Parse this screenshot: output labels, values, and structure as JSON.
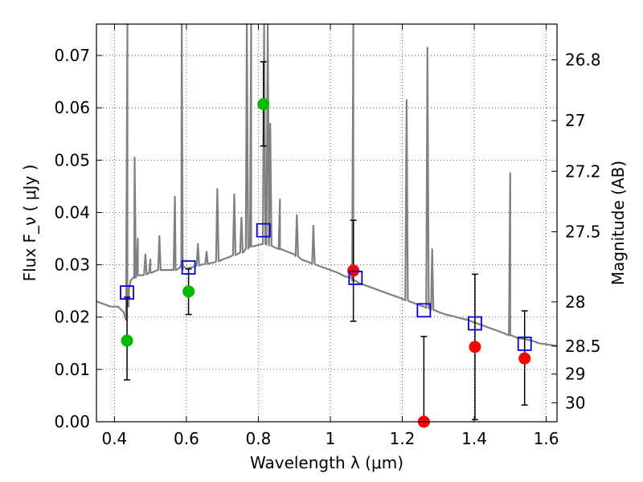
{
  "chart_data": {
    "type": "scatter",
    "title": "",
    "xlabel": "Wavelength  λ (μm)",
    "ylabel": "Flux  F_ν  ( μJy )",
    "y2label": "Magnitude (AB)",
    "xlim": [
      0.35,
      1.63
    ],
    "ylim": [
      0.0,
      0.076
    ],
    "grid": true,
    "x_ticks": [
      "0.4",
      "0.6",
      "0.8",
      "1",
      "1.2",
      "1.4",
      "1.6"
    ],
    "x_tick_values": [
      0.4,
      0.6,
      0.8,
      1.0,
      1.2,
      1.4,
      1.6
    ],
    "y_ticks": [
      "0.00",
      "0.01",
      "0.02",
      "0.03",
      "0.04",
      "0.05",
      "0.06",
      "0.07"
    ],
    "y_tick_values": [
      0.0,
      0.01,
      0.02,
      0.03,
      0.04,
      0.05,
      0.06,
      0.07
    ],
    "mag_ticks": [
      "26.8",
      "27",
      "27.2",
      "27.5",
      "28",
      "28.5",
      "29",
      "30"
    ],
    "colors": {
      "spectrum": "#808080",
      "detections": "#00bb00",
      "upper_limits": "#ff0000",
      "model_photometry": "#0000dd"
    },
    "series": [
      {
        "kind": "spectrum",
        "x": [
          0.35,
          0.37,
          0.39,
          0.41,
          0.425,
          0.432,
          0.436,
          0.44,
          0.445,
          0.455,
          0.465,
          0.48,
          0.5,
          0.52,
          0.545,
          0.57,
          0.583,
          0.586,
          0.59,
          0.6,
          0.62,
          0.64,
          0.66,
          0.68,
          0.7,
          0.72,
          0.74,
          0.76,
          0.765,
          0.78,
          0.8,
          0.82,
          0.84,
          0.86,
          0.88,
          0.9,
          0.92,
          0.94,
          0.96,
          0.98,
          1.0,
          1.02,
          1.04,
          1.06,
          1.064,
          1.08,
          1.1,
          1.12,
          1.14,
          1.16,
          1.18,
          1.2,
          1.22,
          1.24,
          1.26,
          1.28,
          1.3,
          1.32,
          1.34,
          1.36,
          1.38,
          1.4,
          1.42,
          1.44,
          1.46,
          1.48,
          1.5,
          1.52,
          1.54,
          1.56,
          1.58,
          1.6,
          1.63
        ],
        "y": [
          0.023,
          0.0225,
          0.022,
          0.022,
          0.021,
          0.0195,
          0.022,
          0.025,
          0.027,
          0.0275,
          0.028,
          0.028,
          0.0285,
          0.029,
          0.029,
          0.029,
          0.0295,
          0.03,
          0.029,
          0.0293,
          0.0296,
          0.03,
          0.0302,
          0.0305,
          0.031,
          0.0315,
          0.032,
          0.0325,
          0.033,
          0.0335,
          0.0338,
          0.034,
          0.0335,
          0.033,
          0.0325,
          0.032,
          0.031,
          0.0305,
          0.03,
          0.0295,
          0.029,
          0.0285,
          0.0278,
          0.0275,
          0.027,
          0.0265,
          0.026,
          0.0255,
          0.025,
          0.0245,
          0.024,
          0.0235,
          0.023,
          0.0225,
          0.022,
          0.0215,
          0.021,
          0.0205,
          0.0202,
          0.0198,
          0.0195,
          0.019,
          0.0185,
          0.018,
          0.0175,
          0.017,
          0.0165,
          0.016,
          0.0158,
          0.0155,
          0.015,
          0.0148,
          0.0145
        ],
        "lines": [
          {
            "x": 0.436,
            "peak": 0.076
          },
          {
            "x": 0.456,
            "peak": 0.0505
          },
          {
            "x": 0.465,
            "peak": 0.035
          },
          {
            "x": 0.486,
            "peak": 0.032
          },
          {
            "x": 0.5,
            "peak": 0.031
          },
          {
            "x": 0.525,
            "peak": 0.0355
          },
          {
            "x": 0.568,
            "peak": 0.043
          },
          {
            "x": 0.587,
            "peak": 0.076
          },
          {
            "x": 0.632,
            "peak": 0.034
          },
          {
            "x": 0.656,
            "peak": 0.0325
          },
          {
            "x": 0.686,
            "peak": 0.0445
          },
          {
            "x": 0.733,
            "peak": 0.0435
          },
          {
            "x": 0.753,
            "peak": 0.039
          },
          {
            "x": 0.768,
            "peak": 0.076
          },
          {
            "x": 0.78,
            "peak": 0.076
          },
          {
            "x": 0.816,
            "peak": 0.076
          },
          {
            "x": 0.826,
            "peak": 0.076
          },
          {
            "x": 0.833,
            "peak": 0.057
          },
          {
            "x": 0.86,
            "peak": 0.0425
          },
          {
            "x": 0.907,
            "peak": 0.0395
          },
          {
            "x": 0.953,
            "peak": 0.0375
          },
          {
            "x": 1.064,
            "peak": 0.076
          },
          {
            "x": 1.212,
            "peak": 0.0615
          },
          {
            "x": 1.27,
            "peak": 0.0715
          },
          {
            "x": 1.283,
            "peak": 0.033
          },
          {
            "x": 1.5,
            "peak": 0.0475
          }
        ]
      },
      {
        "kind": "detections",
        "points": [
          {
            "x": 0.435,
            "y": 0.0155,
            "yerr_low": 0.008,
            "yerr_high": 0.0238
          },
          {
            "x": 0.606,
            "y": 0.0249,
            "yerr_low": 0.0205,
            "yerr_high": 0.0292
          },
          {
            "x": 0.814,
            "y": 0.0607,
            "yerr_low": 0.0527,
            "yerr_high": 0.0688
          }
        ]
      },
      {
        "kind": "upper_limits",
        "points": [
          {
            "x": 1.064,
            "y": 0.0289,
            "yerr_low": 0.0192,
            "yerr_high": 0.0385
          },
          {
            "x": 1.26,
            "y": 0.0,
            "yerr_low": 0.0,
            "yerr_high": 0.0163
          },
          {
            "x": 1.402,
            "y": 0.0143,
            "yerr_low": 0.0004,
            "yerr_high": 0.0282
          },
          {
            "x": 1.54,
            "y": 0.0121,
            "yerr_low": 0.0032,
            "yerr_high": 0.0212
          }
        ]
      },
      {
        "kind": "model_photometry",
        "points": [
          {
            "x": 0.435,
            "y": 0.0247
          },
          {
            "x": 0.606,
            "y": 0.0295
          },
          {
            "x": 0.814,
            "y": 0.0366
          },
          {
            "x": 1.07,
            "y": 0.0275
          },
          {
            "x": 1.26,
            "y": 0.0213
          },
          {
            "x": 1.402,
            "y": 0.0188
          },
          {
            "x": 1.54,
            "y": 0.0149
          }
        ]
      }
    ]
  }
}
